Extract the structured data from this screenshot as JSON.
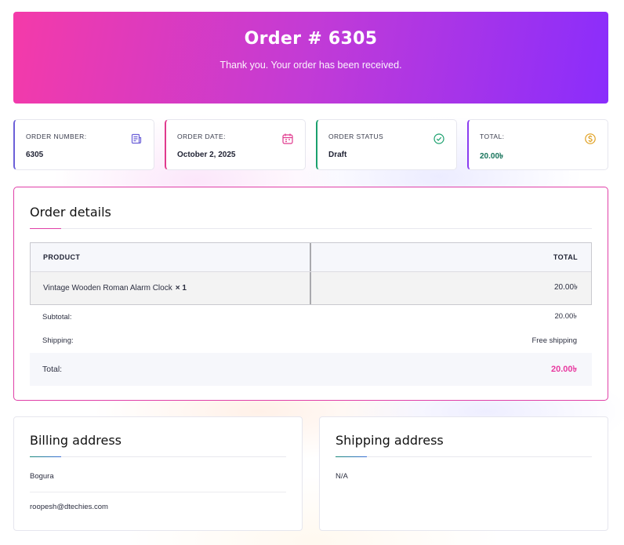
{
  "hero": {
    "title": "Order # 6305",
    "subtitle": "Thank you. Your order has been received."
  },
  "summary_cards": [
    {
      "label": "ORDER NUMBER:",
      "value": "6305",
      "icon": "receipt-icon",
      "accent": "#6b5fd8"
    },
    {
      "label": "ORDER DATE:",
      "value": "October 2, 2025",
      "icon": "calendar-icon",
      "accent": "#e03a8e"
    },
    {
      "label": "ORDER STATUS",
      "value": "Draft",
      "icon": "check-circle-icon",
      "accent": "#1aa06d"
    },
    {
      "label": "TOTAL:",
      "value": "20.00৳",
      "icon": "dollar-coin-icon",
      "accent": "#8a3cf0",
      "value_color": "#16735a"
    }
  ],
  "order_details": {
    "title": "Order details",
    "columns": {
      "product": "PRODUCT",
      "total": "TOTAL"
    },
    "items": [
      {
        "name": "Vintage Wooden Roman Alarm Clock",
        "qty": "× 1",
        "total": "20.00৳"
      }
    ],
    "subtotal": {
      "label": "Subtotal:",
      "value": "20.00৳"
    },
    "shipping": {
      "label": "Shipping:",
      "value": "Free shipping"
    },
    "total": {
      "label": "Total:",
      "value": "20.00৳"
    }
  },
  "billing": {
    "title": "Billing address",
    "city": "Bogura",
    "email": "roopesh@dtechies.com"
  },
  "shipping_address": {
    "title": "Shipping address",
    "value": "N/A"
  },
  "colors": {
    "brand_pink": "#f43aa9",
    "brand_purple": "#8a2dfc",
    "details_border": "#e040a8",
    "accent_teal": "#1b8a7a",
    "accent_blue": "#3b6fd8"
  }
}
